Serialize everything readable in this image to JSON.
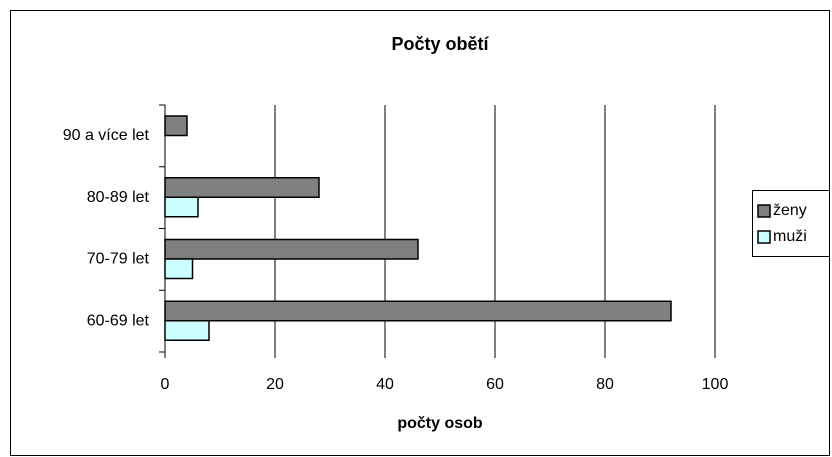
{
  "chart_data": {
    "type": "bar",
    "orientation": "horizontal",
    "title": "Počty obětí",
    "xlabel": "počty osob",
    "categories": [
      "60-69 let",
      "70-79 let",
      "80-89 let",
      "90 a více let"
    ],
    "series": [
      {
        "name": "ženy",
        "color": "#808080",
        "values": [
          92,
          46,
          28,
          4
        ]
      },
      {
        "name": "muži",
        "color": "#ccffff",
        "values": [
          8,
          5,
          6,
          0
        ]
      }
    ],
    "xlim": [
      0,
      100
    ],
    "xticks": [
      0,
      20,
      40,
      60,
      80,
      100
    ],
    "grid": true,
    "legend": "right"
  }
}
